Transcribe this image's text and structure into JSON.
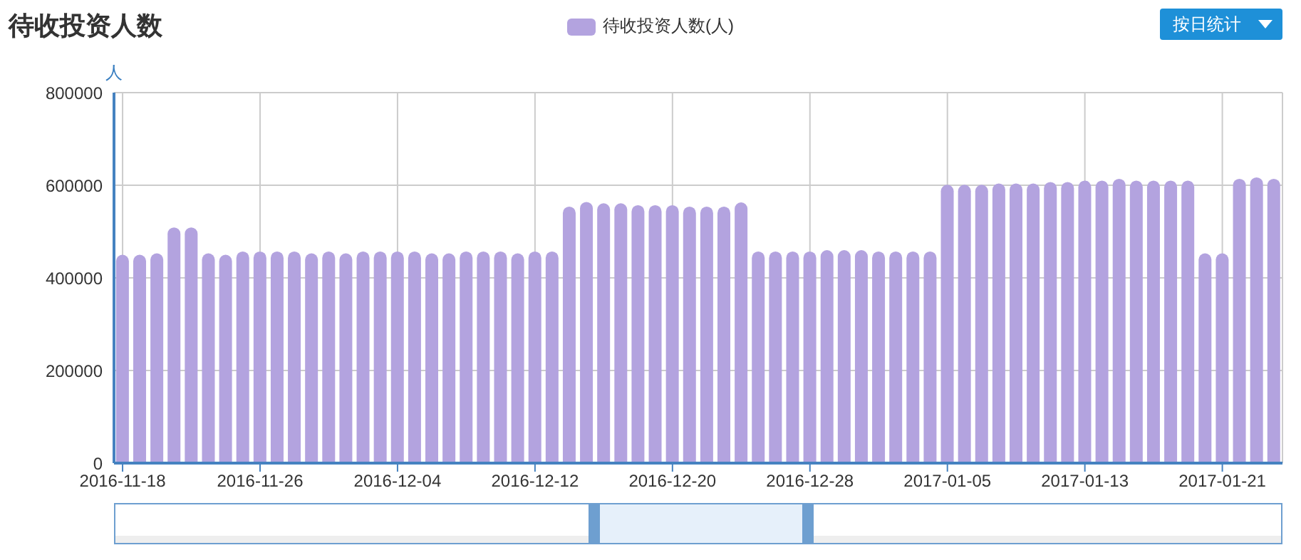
{
  "chart_data": {
    "type": "bar",
    "title": "待收投资人数",
    "ylabel": "人",
    "categories": [
      "2016-11-18",
      null,
      null,
      null,
      null,
      null,
      null,
      null,
      "2016-11-26",
      null,
      null,
      null,
      null,
      null,
      null,
      null,
      "2016-12-04",
      null,
      null,
      null,
      null,
      null,
      null,
      null,
      "2016-12-12",
      null,
      null,
      null,
      null,
      null,
      null,
      null,
      "2016-12-20",
      null,
      null,
      null,
      null,
      null,
      null,
      null,
      "2016-12-28",
      null,
      null,
      null,
      null,
      null,
      null,
      null,
      "2017-01-05",
      null,
      null,
      null,
      null,
      null,
      null,
      null,
      "2017-01-13",
      null,
      null,
      null,
      null,
      null,
      null,
      null,
      "2017-01-21",
      null,
      null,
      null
    ],
    "series": [
      {
        "name": "待收投资人数(人)",
        "color": "#b3a3df",
        "values": [
          450000,
          450000,
          453000,
          509000,
          509000,
          453000,
          450000,
          457000,
          457000,
          457000,
          457000,
          453000,
          457000,
          453000,
          457000,
          457000,
          457000,
          457000,
          453000,
          453000,
          457000,
          457000,
          457000,
          453000,
          457000,
          457000,
          554000,
          564000,
          561000,
          561000,
          557000,
          557000,
          557000,
          554000,
          554000,
          554000,
          563000,
          457000,
          457000,
          457000,
          457000,
          460000,
          460000,
          460000,
          457000,
          457000,
          457000,
          457000,
          601000,
          601000,
          601000,
          604000,
          604000,
          604000,
          607000,
          607000,
          610000,
          610000,
          614000,
          610000,
          610000,
          610000,
          610000,
          453000,
          453000,
          614000,
          617000,
          614000
        ]
      }
    ],
    "ylim": [
      0,
      800000
    ],
    "yticks": [
      0,
      200000,
      400000,
      600000,
      800000
    ],
    "grid": true,
    "legend": "top",
    "annotations": [
      "按日统计"
    ]
  }
}
